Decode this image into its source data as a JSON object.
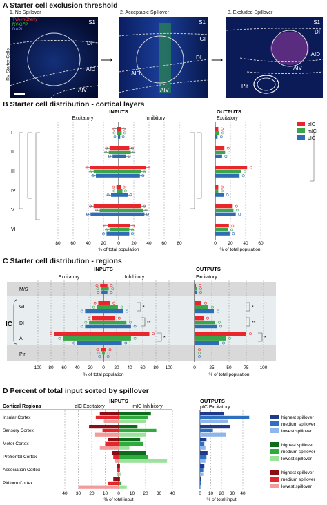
{
  "panelA": {
    "title": "A Starter cell exclusion threshold",
    "side_label": "RV Starter Cells",
    "legend": [
      "TVA-mCherry",
      "RV-GFP",
      "DAPI"
    ],
    "legend_colors": [
      "#ff3b3b",
      "#37d437",
      "#5a7bff"
    ],
    "images": [
      {
        "caption": "1. No Spillover",
        "labels": [
          "S1",
          "DI",
          "AID",
          "AIV"
        ]
      },
      {
        "caption": "2. Acceptable Spillover",
        "labels": [
          "S1",
          "GI",
          "DI",
          "AID",
          "AIV"
        ]
      },
      {
        "caption": "3. Excluded Spillover",
        "labels": [
          "S1",
          "DI",
          "AID",
          "AIV",
          "Pir"
        ]
      }
    ]
  },
  "panelB": {
    "title": "B Starter cell distribution - cortical layers",
    "inputs_label": "INPUTS",
    "outputs_label": "OUTPUTS",
    "excitatory_label": "Excitatory",
    "inhibitory_label": "Inhibitory",
    "xlabel": "% of total population",
    "rows": [
      "I",
      "II",
      "III",
      "IV",
      "V",
      "VI"
    ],
    "legend": [
      "aIC",
      "mIC",
      "pIC"
    ],
    "colors": [
      "#e8262c",
      "#3aa64a",
      "#2e6db4"
    ],
    "left_ticks": [
      "80",
      "60",
      "40",
      "20",
      "0",
      "20",
      "40",
      "60",
      "80"
    ],
    "right_ticks": [
      "0",
      "20",
      "40",
      "60"
    ]
  },
  "panelC": {
    "title": "C Starter cell distribution - regions",
    "inputs_label": "INPUTS",
    "outputs_label": "OUTPUTS",
    "excitatory_label": "Excitatory",
    "inhibitory_label": "Inhibitory",
    "ic_label": "IC",
    "xlabel": "% of total population",
    "rows": [
      "M/S",
      "GI",
      "DI",
      "AI",
      "Pir"
    ],
    "left_ticks": [
      "100",
      "80",
      "60",
      "40",
      "20",
      "0",
      "20",
      "40",
      "60",
      "80",
      "100"
    ],
    "right_ticks": [
      "0",
      "25",
      "50",
      "75",
      "100"
    ]
  },
  "panelD": {
    "title": "D Percent of total input sorted by spillover",
    "inputs_label": "INPUTS",
    "outputs_label": "OUTPUTS",
    "regions_header": "Cortical Regions",
    "aic_header": "aIC Excitatory",
    "mic_header": "mIC Inhibitory",
    "pic_header": "pIC Excitatory",
    "regions": [
      "Insular Cortex",
      "Sensory Cortex",
      "Motor Cortex",
      "Prefrontal Cortex",
      "Association Cortex",
      "Piriform Cortex"
    ],
    "left_ticks": [
      "40",
      "30",
      "20",
      "10",
      "0",
      "10",
      "20",
      "30",
      "40"
    ],
    "right_ticks": [
      "0",
      "10",
      "20",
      "30",
      "40"
    ],
    "xlabel": "% of total input",
    "legend_groups": [
      {
        "labels": [
          "highest spillover",
          "medium spillover",
          "lowest spillover"
        ],
        "colors": [
          "#1f3a8a",
          "#2f6fc0",
          "#8fb6ea"
        ]
      },
      {
        "labels": [
          "highest spillover",
          "medium spillover",
          "lowest spillover"
        ],
        "colors": [
          "#0f6b1c",
          "#2faa3c",
          "#9be39a"
        ]
      },
      {
        "labels": [
          "highest spillover",
          "medium spillover",
          "lowest spillover"
        ],
        "colors": [
          "#8c0e12",
          "#e2262b",
          "#f39a9a"
        ]
      }
    ]
  },
  "chart_data": [
    {
      "type": "bar",
      "title": "Starter cell distribution - cortical layers",
      "xlabel": "% of total population",
      "categories": [
        "I",
        "II",
        "III",
        "IV",
        "V",
        "VI"
      ],
      "series": [
        {
          "name": "aIC",
          "excitatory_inputs": [
            2,
            12,
            38,
            3,
            33,
            14
          ],
          "inhibitory_inputs": [
            3,
            14,
            36,
            3,
            30,
            15
          ],
          "excitatory_outputs": [
            4,
            12,
            42,
            4,
            23,
            18
          ]
        },
        {
          "name": "mIC",
          "excitatory_inputs": [
            2,
            13,
            33,
            2,
            25,
            12
          ],
          "inhibitory_inputs": [
            4,
            16,
            30,
            5,
            32,
            14
          ],
          "excitatory_outputs": [
            5,
            13,
            34,
            4,
            24,
            17
          ]
        },
        {
          "name": "pIC",
          "excitatory_inputs": [
            1,
            8,
            30,
            10,
            37,
            16
          ],
          "inhibitory_inputs": [
            2,
            10,
            28,
            12,
            34,
            14
          ],
          "excitatory_outputs": [
            3,
            9,
            32,
            11,
            27,
            19
          ]
        }
      ],
      "xlim": [
        -80,
        80
      ]
    },
    {
      "type": "bar",
      "title": "Starter cell distribution - regions",
      "xlabel": "% of total population",
      "categories": [
        "M/S",
        "GI",
        "DI",
        "AI",
        "Pir"
      ],
      "series": [
        {
          "name": "aIC",
          "excitatory_inputs": [
            5,
            8,
            17,
            75,
            4
          ],
          "inhibitory_inputs": [
            6,
            10,
            18,
            70,
            4
          ],
          "excitatory_outputs": [
            2,
            10,
            13,
            75,
            1
          ]
        },
        {
          "name": "mIC",
          "excitatory_inputs": [
            4,
            10,
            22,
            62,
            2
          ],
          "inhibitory_inputs": [
            8,
            22,
            35,
            42,
            2
          ],
          "excitatory_outputs": [
            3,
            20,
            30,
            45,
            1
          ]
        },
        {
          "name": "pIC",
          "excitatory_inputs": [
            3,
            28,
            28,
            40,
            1
          ],
          "inhibitory_inputs": [
            6,
            30,
            42,
            28,
            1
          ],
          "excitatory_outputs": [
            3,
            28,
            32,
            36,
            1
          ]
        }
      ],
      "xlim": [
        -100,
        100
      ]
    },
    {
      "type": "bar",
      "title": "Percent of total input sorted by spillover",
      "xlabel": "% of total input",
      "categories": [
        "Insular Cortex",
        "Sensory Cortex",
        "Motor Cortex",
        "Prefrontal Cortex",
        "Association Cortex",
        "Piriform Cortex"
      ],
      "series": [
        {
          "name": "aIC highest spillover",
          "values": [
            14,
            22,
            8,
            5,
            1,
            4
          ]
        },
        {
          "name": "aIC medium spillover",
          "values": [
            17,
            12,
            10,
            4,
            1,
            8
          ]
        },
        {
          "name": "aIC lowest spillover",
          "values": [
            11,
            18,
            14,
            3,
            1,
            30
          ]
        },
        {
          "name": "mIC highest spillover",
          "values": [
            24,
            14,
            16,
            20,
            1,
            1
          ]
        },
        {
          "name": "mIC medium spillover",
          "values": [
            22,
            28,
            18,
            22,
            1,
            2
          ]
        },
        {
          "name": "mIC lowest spillover",
          "values": [
            20,
            20,
            8,
            36,
            2,
            6
          ]
        },
        {
          "name": "pIC highest spillover",
          "values": [
            22,
            28,
            6,
            7,
            4,
            1
          ]
        },
        {
          "name": "pIC medium spillover",
          "values": [
            46,
            12,
            4,
            6,
            3,
            1
          ]
        },
        {
          "name": "pIC lowest spillover",
          "values": [
            26,
            24,
            5,
            5,
            3,
            1
          ]
        }
      ]
    }
  ]
}
